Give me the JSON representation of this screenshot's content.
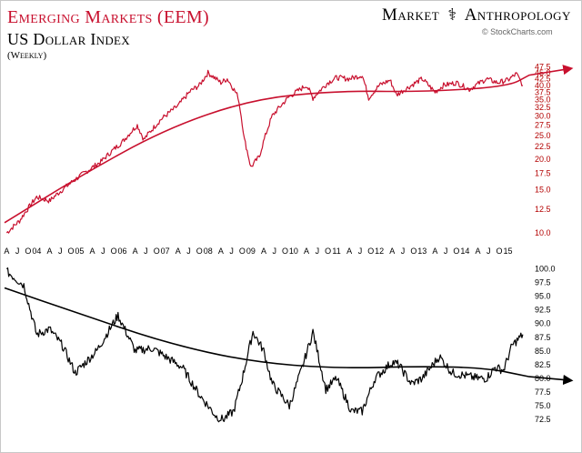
{
  "header": {
    "title_top": "Emerging Markets (EEM)",
    "title_bottom": "US Dollar Index",
    "frequency": "(Weekly)",
    "brand_left": "Market",
    "brand_right": "Anthropology",
    "credit": "© StockCharts.com"
  },
  "colors": {
    "eem": "#c8102e",
    "dxy": "#000000"
  },
  "chart_data": [
    {
      "type": "line",
      "title": "Emerging Markets (EEM)",
      "scale": "log",
      "ylim": [
        9.5,
        49
      ],
      "yticks": [
        47.5,
        45.0,
        42.5,
        40.0,
        37.5,
        35.0,
        32.5,
        30.0,
        27.5,
        25.0,
        22.5,
        20.0,
        17.5,
        15.0,
        12.5,
        10.0
      ],
      "ytick_labels": [
        "47.5",
        "45.0",
        "42.5",
        "40.0",
        "37.5",
        "35.0",
        "32.5",
        "30.0",
        "27.5",
        "25.0",
        "22.5",
        "20.0",
        "17.5",
        "15.0",
        "12.5",
        "10.0"
      ],
      "xlim": [
        2003.25,
        2015.5
      ],
      "x": [
        2003.3,
        2003.6,
        2004.0,
        2004.3,
        2004.6,
        2005.0,
        2005.5,
        2006.0,
        2006.35,
        2006.5,
        2006.9,
        2007.3,
        2007.6,
        2007.8,
        2008.0,
        2008.3,
        2008.45,
        2008.7,
        2008.85,
        2009.0,
        2009.2,
        2009.5,
        2009.9,
        2010.3,
        2010.45,
        2010.8,
        2011.0,
        2011.3,
        2011.6,
        2011.75,
        2012.0,
        2012.25,
        2012.4,
        2012.75,
        2013.0,
        2013.3,
        2013.5,
        2013.8,
        2014.1,
        2014.5,
        2014.75,
        2015.0,
        2015.2,
        2015.35
      ],
      "values": [
        10.0,
        11.2,
        14.0,
        13.5,
        15.0,
        17.0,
        19.5,
        23.5,
        27.5,
        24.0,
        29.0,
        33.0,
        38.0,
        40.0,
        45.0,
        41.0,
        42.5,
        36.0,
        24.0,
        18.5,
        20.5,
        30.0,
        36.0,
        40.0,
        35.5,
        41.0,
        43.0,
        42.5,
        44.0,
        35.5,
        40.0,
        42.0,
        36.5,
        40.0,
        42.5,
        37.5,
        40.0,
        41.0,
        38.5,
        42.5,
        41.0,
        42.0,
        44.5,
        40.0
      ],
      "trend": {
        "x": [
          2003.25,
          2005.0,
          2007.0,
          2009.0,
          2011.0,
          2013.0,
          2015.0,
          2015.5
        ],
        "values": [
          11.0,
          17.0,
          26.5,
          35.0,
          38.0,
          37.6,
          39.5,
          44.0
        ]
      }
    },
    {
      "type": "line",
      "title": "US Dollar Index",
      "scale": "linear",
      "ylim": [
        70.7,
        100.9
      ],
      "yticks": [
        100.0,
        97.5,
        95.0,
        92.5,
        90.0,
        87.5,
        85.0,
        82.5,
        80.0,
        77.5,
        75.0,
        72.5
      ],
      "ytick_labels": [
        "100.0",
        "97.5",
        "95.0",
        "92.5",
        "90.0",
        "87.5",
        "85.0",
        "82.5",
        "80.0",
        "77.5",
        "75.0",
        "72.5"
      ],
      "xlim": [
        2003.25,
        2015.5
      ],
      "x": [
        2003.3,
        2003.7,
        2004.0,
        2004.3,
        2004.6,
        2004.9,
        2005.4,
        2005.9,
        2006.3,
        2006.7,
        2007.0,
        2007.4,
        2007.8,
        2008.2,
        2008.35,
        2008.6,
        2008.8,
        2009.05,
        2009.3,
        2009.5,
        2009.9,
        2010.2,
        2010.45,
        2010.75,
        2011.0,
        2011.35,
        2011.6,
        2011.9,
        2012.3,
        2012.45,
        2012.75,
        2013.0,
        2013.4,
        2013.7,
        2014.0,
        2014.3,
        2014.5,
        2014.7,
        2014.9,
        2015.1,
        2015.35
      ],
      "values": [
        99.5,
        97.0,
        88.0,
        89.0,
        86.0,
        81.0,
        85.0,
        91.5,
        85.0,
        85.5,
        84.0,
        82.0,
        77.0,
        73.0,
        72.5,
        74.0,
        80.0,
        88.5,
        85.0,
        79.0,
        75.0,
        82.0,
        88.5,
        78.0,
        80.0,
        74.0,
        74.0,
        80.0,
        83.0,
        82.5,
        79.0,
        80.0,
        84.0,
        81.0,
        80.5,
        80.0,
        80.0,
        82.0,
        81.5,
        86.0,
        88.0
      ],
      "trend": {
        "x": [
          2003.25,
          2005.0,
          2007.0,
          2009.0,
          2011.0,
          2013.0,
          2014.5,
          2015.5
        ],
        "values": [
          96.5,
          91.8,
          86.5,
          83.0,
          81.8,
          82.2,
          81.9,
          80.3
        ]
      }
    }
  ],
  "x_axis": {
    "ticks": [
      {
        "t": 2003.3,
        "label": "A"
      },
      {
        "t": 2003.55,
        "label": "J"
      },
      {
        "t": 2003.8,
        "label": "O"
      },
      {
        "t": 2004.0,
        "label": "04"
      },
      {
        "t": 2004.3,
        "label": "A"
      },
      {
        "t": 2004.55,
        "label": "J"
      },
      {
        "t": 2004.8,
        "label": "O"
      },
      {
        "t": 2005.0,
        "label": "05"
      },
      {
        "t": 2005.3,
        "label": "A"
      },
      {
        "t": 2005.55,
        "label": "J"
      },
      {
        "t": 2005.8,
        "label": "O"
      },
      {
        "t": 2006.0,
        "label": "06"
      },
      {
        "t": 2006.3,
        "label": "A"
      },
      {
        "t": 2006.55,
        "label": "J"
      },
      {
        "t": 2006.8,
        "label": "O"
      },
      {
        "t": 2007.0,
        "label": "07"
      },
      {
        "t": 2007.3,
        "label": "A"
      },
      {
        "t": 2007.55,
        "label": "J"
      },
      {
        "t": 2007.8,
        "label": "O"
      },
      {
        "t": 2008.0,
        "label": "08"
      },
      {
        "t": 2008.3,
        "label": "A"
      },
      {
        "t": 2008.55,
        "label": "J"
      },
      {
        "t": 2008.8,
        "label": "O"
      },
      {
        "t": 2009.0,
        "label": "09"
      },
      {
        "t": 2009.3,
        "label": "A"
      },
      {
        "t": 2009.55,
        "label": "J"
      },
      {
        "t": 2009.8,
        "label": "O"
      },
      {
        "t": 2010.0,
        "label": "10"
      },
      {
        "t": 2010.3,
        "label": "A"
      },
      {
        "t": 2010.55,
        "label": "J"
      },
      {
        "t": 2010.8,
        "label": "O"
      },
      {
        "t": 2011.0,
        "label": "11"
      },
      {
        "t": 2011.3,
        "label": "A"
      },
      {
        "t": 2011.55,
        "label": "J"
      },
      {
        "t": 2011.8,
        "label": "O"
      },
      {
        "t": 2012.0,
        "label": "12"
      },
      {
        "t": 2012.3,
        "label": "A"
      },
      {
        "t": 2012.55,
        "label": "J"
      },
      {
        "t": 2012.8,
        "label": "O"
      },
      {
        "t": 2013.0,
        "label": "13"
      },
      {
        "t": 2013.3,
        "label": "A"
      },
      {
        "t": 2013.55,
        "label": "J"
      },
      {
        "t": 2013.8,
        "label": "O"
      },
      {
        "t": 2014.0,
        "label": "14"
      },
      {
        "t": 2014.3,
        "label": "A"
      },
      {
        "t": 2014.55,
        "label": "J"
      },
      {
        "t": 2014.8,
        "label": "O"
      },
      {
        "t": 2015.0,
        "label": "15"
      }
    ]
  }
}
